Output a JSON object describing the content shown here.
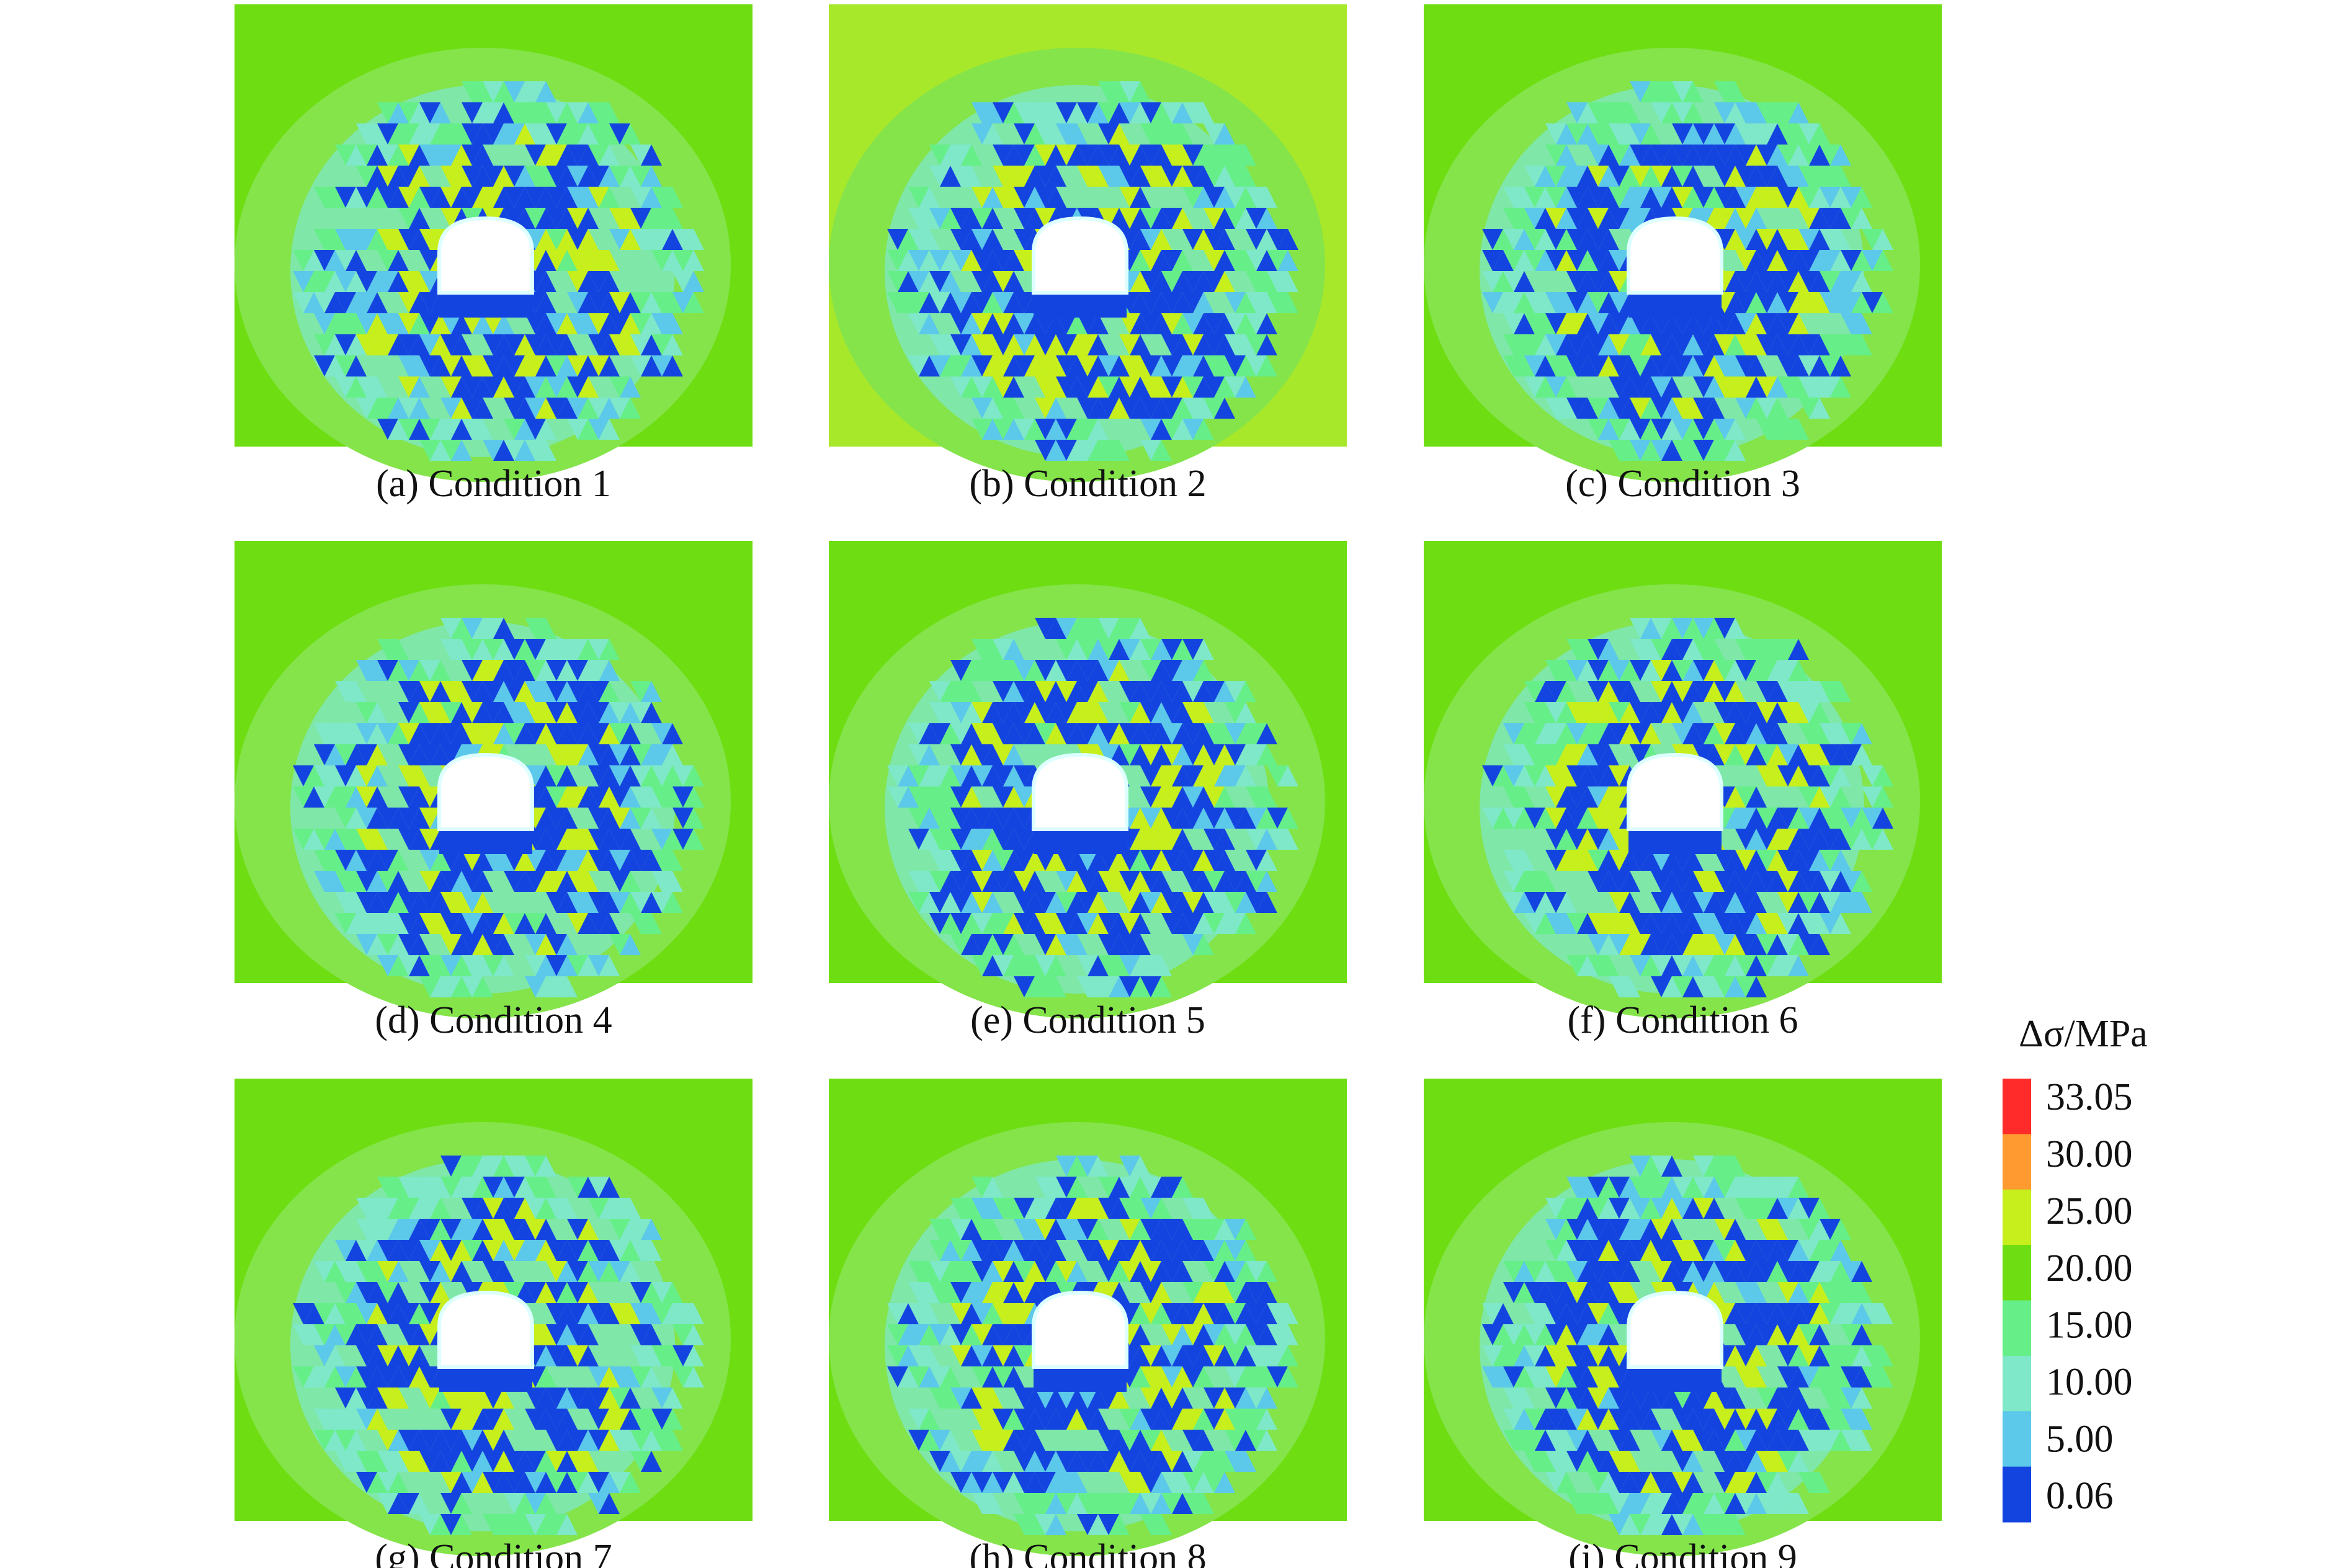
{
  "panels": [
    {
      "caption": "(a) Condition 1"
    },
    {
      "caption": "(b) Condition 2"
    },
    {
      "caption": "(c) Condition 3"
    },
    {
      "caption": "(d) Condition 4"
    },
    {
      "caption": "(e) Condition 5"
    },
    {
      "caption": "(f) Condition 6"
    },
    {
      "caption": "(g) Condition 7"
    },
    {
      "caption": "(h) Condition 8"
    },
    {
      "caption": "(i) Condition 9"
    }
  ],
  "colorbar": {
    "title": "Δσ/MPa",
    "levels": [
      {
        "value": 33.05,
        "label": "33.05",
        "color": "#ff2a2a"
      },
      {
        "value": 30,
        "label": "30.00",
        "color": "#ff9a30"
      },
      {
        "value": 25,
        "label": "25.00",
        "color": "#c6ef1c"
      },
      {
        "value": 20,
        "label": "20.00",
        "color": "#6ede12"
      },
      {
        "value": 15,
        "label": "15.00",
        "color": "#66ef88"
      },
      {
        "value": 10,
        "label": "10.00",
        "color": "#7ee8c8"
      },
      {
        "value": 5,
        "label": "5.00",
        "color": "#5cc8ea"
      },
      {
        "value": 0.06,
        "label": "0.06",
        "color": "#1444e0"
      }
    ]
  }
}
